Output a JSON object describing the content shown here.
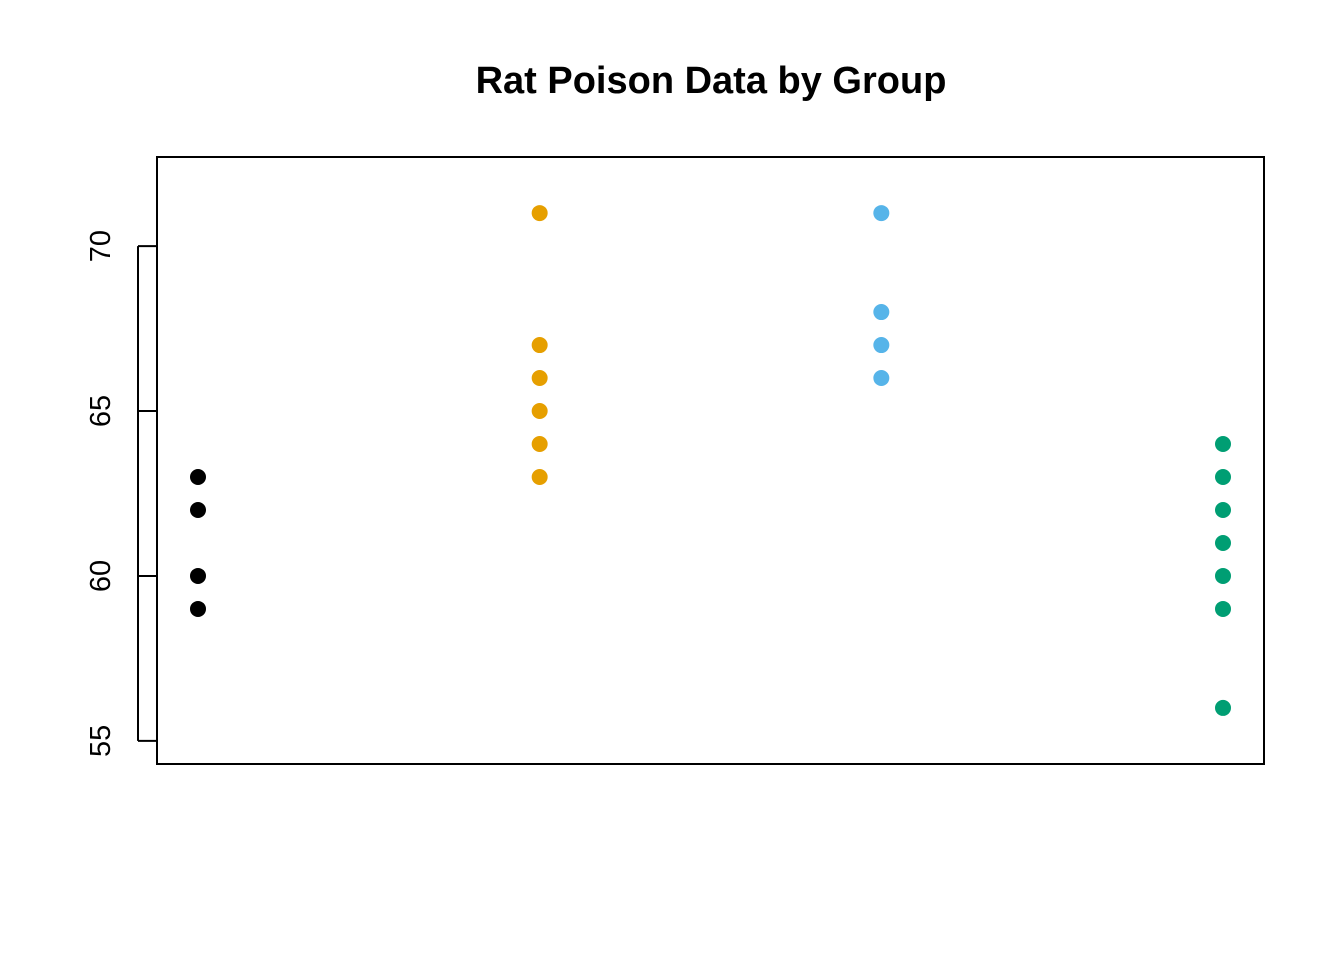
{
  "chart_data": {
    "type": "scatter",
    "title": "Rat Poison Data by Group",
    "xlabel": "",
    "ylabel": "",
    "ylim": [
      54.3,
      72.7
    ],
    "xlim": [
      0.88,
      4.12
    ],
    "grid": false,
    "legend": "none",
    "y_ticks": [
      55,
      60,
      65,
      70
    ],
    "series": [
      {
        "group": 1,
        "color": "#000000",
        "values": [
          63,
          62,
          60,
          59
        ]
      },
      {
        "group": 2,
        "color": "#E69F00",
        "values": [
          71,
          67,
          66,
          65,
          64,
          63
        ]
      },
      {
        "group": 3,
        "color": "#56B4E9",
        "values": [
          71,
          68,
          67,
          66
        ]
      },
      {
        "group": 4,
        "color": "#009E73",
        "values": [
          64,
          63,
          62,
          61,
          60,
          59,
          56
        ]
      }
    ]
  }
}
